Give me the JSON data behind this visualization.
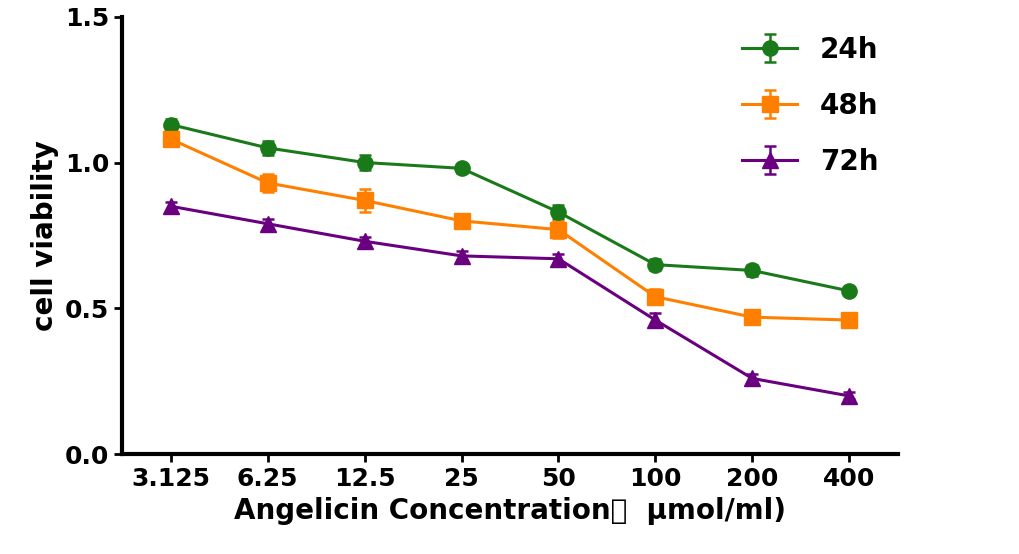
{
  "x_labels": [
    "3.125",
    "6.25",
    "12.5",
    "25",
    "50",
    "100",
    "200",
    "400"
  ],
  "x_positions": [
    1,
    2,
    3,
    4,
    5,
    6,
    7,
    8
  ],
  "series": {
    "24h": {
      "y": [
        1.13,
        1.05,
        1.0,
        0.98,
        0.83,
        0.65,
        0.63,
        0.56
      ],
      "yerr": [
        0.02,
        0.025,
        0.025,
        0.015,
        0.025,
        0.02,
        0.018,
        0.015
      ],
      "color": "#1a7a1a",
      "marker": "o",
      "label": "24h"
    },
    "48h": {
      "y": [
        1.08,
        0.93,
        0.87,
        0.8,
        0.77,
        0.54,
        0.47,
        0.46
      ],
      "yerr": [
        0.02,
        0.03,
        0.04,
        0.02,
        0.03,
        0.025,
        0.02,
        0.018
      ],
      "color": "#ff8000",
      "marker": "s",
      "label": "48h"
    },
    "72h": {
      "y": [
        0.85,
        0.79,
        0.73,
        0.68,
        0.67,
        0.46,
        0.26,
        0.2
      ],
      "yerr": [
        0.015,
        0.015,
        0.015,
        0.015,
        0.015,
        0.025,
        0.015,
        0.012
      ],
      "color": "#6a0080",
      "marker": "^",
      "label": "72h"
    }
  },
  "xlabel": "Angelicin Concentration（  μmol/ml)",
  "ylabel": "cell viability",
  "ylim": [
    0.0,
    1.5
  ],
  "yticks": [
    0.0,
    0.5,
    1.0,
    1.5
  ],
  "legend_fontsize": 20,
  "axis_label_fontsize": 20,
  "tick_fontsize": 18,
  "linewidth": 2.2,
  "markersize": 11,
  "capsize": 4,
  "background_color": "#ffffff"
}
